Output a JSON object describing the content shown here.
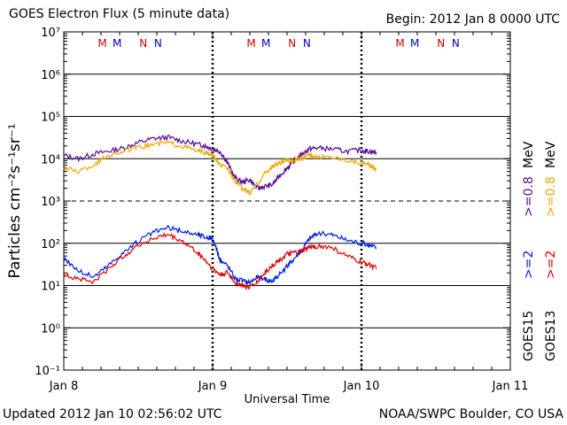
{
  "header": {
    "title": "GOES Electron Flux (5 minute data)",
    "begin": "Begin: 2012 Jan 8 0000 UTC"
  },
  "footer": {
    "updated": "Updated 2012 Jan 10 02:56:02 UTC",
    "credit": "NOAA/SWPC Boulder, CO USA"
  },
  "colors": {
    "goes15_gt08": "#5a0a9a",
    "goes13_gt08": "#f0a800",
    "goes15_gt2": "#0020e0",
    "goes13_gt2": "#e00000",
    "marker_m": "#cc0000",
    "marker_blue": "#0000cc"
  },
  "chart_data": {
    "type": "line",
    "title": "GOES Electron Flux (5 minute data)",
    "xlabel": "Universal Time",
    "ylabel": "Particles cm⁻²s⁻¹sr⁻¹",
    "y_scale": "log",
    "ylim": [
      0.1,
      10000000
    ],
    "y_ticks": [
      "10⁻¹",
      "10⁰",
      "10¹",
      "10²",
      "10³",
      "10⁴",
      "10⁵",
      "10⁶",
      "10⁷"
    ],
    "x_ticks": [
      "Jan 8",
      "Jan 9",
      "Jan 10",
      "Jan 11"
    ],
    "xlim_days": [
      0,
      3
    ],
    "grid": true,
    "dashed_gridline_at": 1000,
    "day_markers": [
      "M",
      "M",
      "N",
      "N"
    ],
    "right_labels": [
      {
        "goes": "GOES15",
        "gt08": ">=0.8",
        "gt2": ">=2",
        "unit": "MeV"
      },
      {
        "goes": "GOES13",
        "gt08": ">=0.8",
        "gt2": ">=2",
        "unit": "MeV"
      }
    ],
    "series": [
      {
        "key": "goes15_gt08",
        "x": [
          0,
          0.1,
          0.2,
          0.3,
          0.4,
          0.5,
          0.6,
          0.7,
          0.8,
          0.9,
          0.95,
          1.0,
          1.05,
          1.1,
          1.15,
          1.2,
          1.25,
          1.3,
          1.35,
          1.4,
          1.45,
          1.5,
          1.55,
          1.6,
          1.65,
          1.7,
          1.8,
          1.9,
          2.0,
          2.05,
          2.1
        ],
        "y": [
          12000,
          10000,
          13000,
          15000,
          18000,
          24000,
          30000,
          32000,
          26000,
          22000,
          20000,
          17000,
          15000,
          8000,
          3500,
          2800,
          3200,
          2000,
          2200,
          2400,
          4000,
          6000,
          9000,
          13000,
          17000,
          18000,
          17000,
          15000,
          16000,
          15000,
          14000
        ]
      },
      {
        "key": "goes13_gt08",
        "x": [
          0,
          0.1,
          0.2,
          0.3,
          0.4,
          0.5,
          0.6,
          0.7,
          0.8,
          0.9,
          0.95,
          1.0,
          1.05,
          1.1,
          1.15,
          1.2,
          1.25,
          1.3,
          1.35,
          1.4,
          1.45,
          1.5,
          1.55,
          1.6,
          1.65,
          1.7,
          1.8,
          1.9,
          2.0,
          2.05,
          2.1
        ],
        "y": [
          6000,
          5000,
          7000,
          12000,
          15000,
          18000,
          22000,
          24000,
          20000,
          15000,
          14000,
          12000,
          7000,
          6000,
          3000,
          2000,
          1500,
          2500,
          4500,
          6500,
          8000,
          9000,
          9500,
          10000,
          12000,
          11000,
          11000,
          9500,
          8000,
          7000,
          5500
        ]
      },
      {
        "key": "goes15_gt2",
        "x": [
          0,
          0.1,
          0.2,
          0.3,
          0.4,
          0.5,
          0.6,
          0.7,
          0.8,
          0.9,
          0.95,
          1.0,
          1.05,
          1.1,
          1.15,
          1.2,
          1.25,
          1.3,
          1.35,
          1.4,
          1.45,
          1.5,
          1.55,
          1.6,
          1.65,
          1.7,
          1.8,
          1.9,
          2.0,
          2.05,
          2.1
        ],
        "y": [
          45,
          22,
          16,
          30,
          60,
          110,
          180,
          230,
          190,
          160,
          140,
          130,
          40,
          30,
          15,
          13,
          12,
          16,
          14,
          13,
          18,
          28,
          45,
          70,
          130,
          170,
          160,
          120,
          100,
          90,
          80
        ]
      },
      {
        "key": "goes13_gt2",
        "x": [
          0,
          0.1,
          0.2,
          0.3,
          0.4,
          0.5,
          0.6,
          0.7,
          0.8,
          0.9,
          0.95,
          1.0,
          1.05,
          1.1,
          1.15,
          1.2,
          1.25,
          1.3,
          1.35,
          1.4,
          1.45,
          1.5,
          1.55,
          1.6,
          1.65,
          1.7,
          1.8,
          1.9,
          2.0,
          2.05,
          2.1
        ],
        "y": [
          18,
          15,
          12,
          25,
          50,
          90,
          130,
          160,
          110,
          60,
          40,
          25,
          18,
          20,
          12,
          10,
          9,
          12,
          20,
          30,
          40,
          55,
          60,
          65,
          80,
          85,
          80,
          50,
          35,
          32,
          25
        ]
      }
    ]
  }
}
